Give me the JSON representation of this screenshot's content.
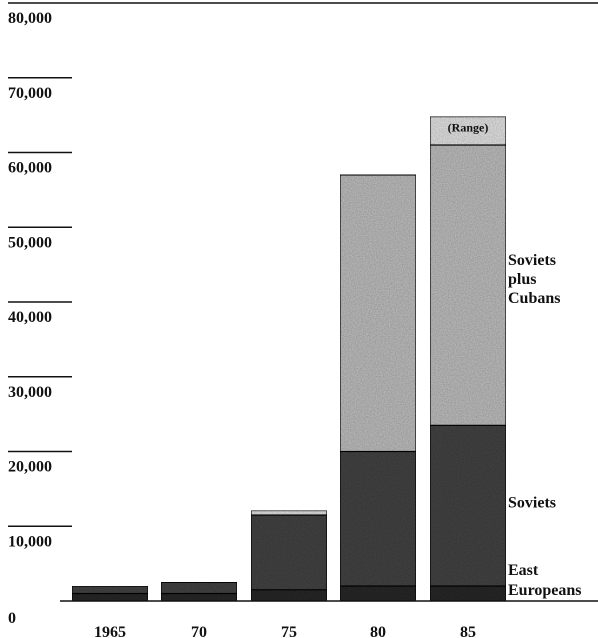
{
  "chart_data": {
    "type": "bar",
    "stacked": true,
    "categories": [
      "1965",
      "70",
      "75",
      "80",
      "85"
    ],
    "ylim": [
      0,
      80000
    ],
    "yticks": [
      "80,000",
      "70,000",
      "60,000",
      "50,000",
      "40,000",
      "30,000",
      "20,000",
      "10,000",
      "0"
    ],
    "series": [
      {
        "name": "East Europeans",
        "values": [
          1000,
          1000,
          1500,
          2000,
          2000
        ],
        "color": "#2b2b2b"
      },
      {
        "name": "Soviets",
        "values": [
          1000,
          1500,
          10000,
          18000,
          21500
        ],
        "color": "#444444"
      },
      {
        "name": "Soviets plus Cubans",
        "values": [
          0,
          0,
          0,
          37000,
          37500
        ],
        "color": "#bdbdbd"
      },
      {
        "name": "Range",
        "values": [
          0,
          0,
          600,
          0,
          3800
        ],
        "color": "#e2e2e2"
      }
    ],
    "segment_labels": {
      "range": "(Range)",
      "soviets_plus_cubans": [
        "Soviets",
        "plus",
        "Cubans"
      ],
      "soviets": "Soviets",
      "east_europeans": [
        "East",
        "Europeans"
      ]
    },
    "grid": false,
    "legend": "none"
  }
}
